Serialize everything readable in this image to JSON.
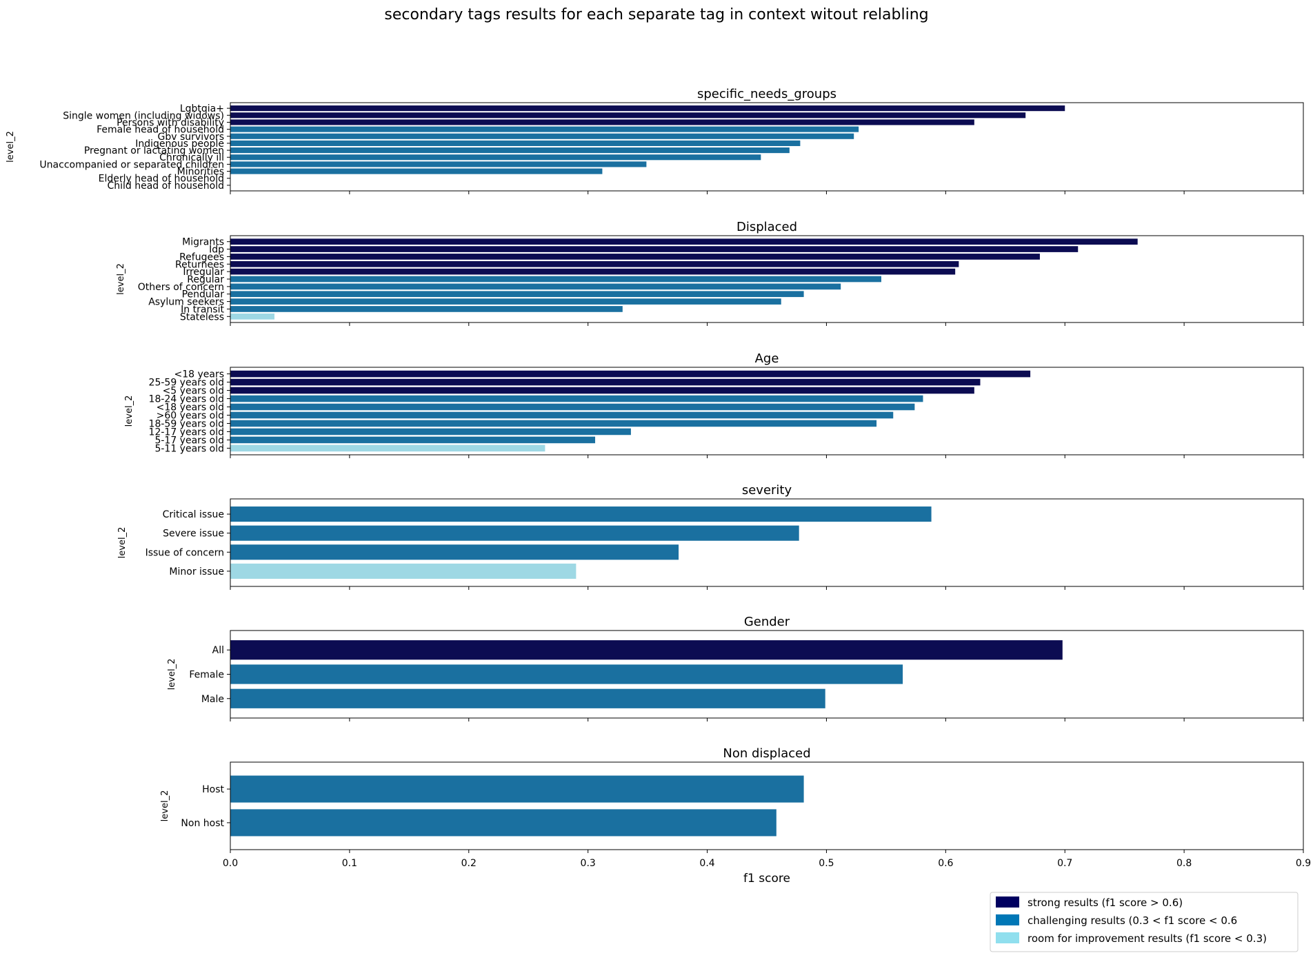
{
  "chart_data": {
    "type": "bar",
    "orientation": "horizontal",
    "title": "secondary tags results for each separate tag in context witout relabling",
    "xlabel": "f1 score",
    "xlim": [
      0,
      0.9
    ],
    "xticks": [
      "0.0",
      "0.1",
      "0.2",
      "0.3",
      "0.4",
      "0.5",
      "0.6",
      "0.7",
      "0.8",
      "0.9"
    ],
    "grid": false,
    "legend_position": "bottom-right",
    "colors": {
      "strong": "#0c0c52",
      "challenging": "#1a70a0",
      "room": "#9ed8e4",
      "legend_strong": "#000060",
      "legend_challenging": "#0077b6",
      "legend_room": "#90dfee"
    },
    "legend": [
      {
        "key": "strong",
        "label": "strong results (f1 score > 0.6)"
      },
      {
        "key": "challenging",
        "label": "challenging results (0.3 < f1 score < 0.6"
      },
      {
        "key": "room",
        "label": "room for improvement results (f1 score < 0.3)"
      }
    ],
    "panels": [
      {
        "title": "specific_needs_groups",
        "ylabel": "level_2",
        "categories": [
          "Lgbtqia+",
          "Single women (including widows)",
          "Persons with disability",
          "Female head of household",
          "Gbv survivors",
          "Indigenous people",
          "Pregnant or lactating women",
          "Chronically ill",
          "Unaccompanied or separated children",
          "Minorities",
          "Elderly head of household",
          "Child head of household"
        ],
        "values": [
          0.7,
          0.667,
          0.624,
          0.527,
          0.523,
          0.478,
          0.469,
          0.445,
          0.349,
          0.312,
          0.0,
          0.0
        ],
        "levels": [
          "strong",
          "strong",
          "strong",
          "challenging",
          "challenging",
          "challenging",
          "challenging",
          "challenging",
          "challenging",
          "challenging",
          "room",
          "room"
        ]
      },
      {
        "title": "Displaced",
        "ylabel": "level_2",
        "categories": [
          "Migrants",
          "Idp",
          "Refugees",
          "Returnees",
          "Irregular",
          "Regular",
          "Others of concern",
          "Pendular",
          "Asylum seekers",
          "In transit",
          "Stateless"
        ],
        "values": [
          0.761,
          0.711,
          0.679,
          0.611,
          0.608,
          0.546,
          0.512,
          0.481,
          0.462,
          0.329,
          0.037
        ],
        "levels": [
          "strong",
          "strong",
          "strong",
          "strong",
          "strong",
          "challenging",
          "challenging",
          "challenging",
          "challenging",
          "challenging",
          "room"
        ]
      },
      {
        "title": "Age",
        "ylabel": "level_2",
        "categories": [
          "<18 years",
          "25-59 years old",
          "<5 years old",
          "18-24 years old",
          "<18 years old",
          ">60 years old",
          "18-59 years old",
          "12-17 years old",
          "5-17 years old",
          "5-11 years old"
        ],
        "values": [
          0.671,
          0.629,
          0.624,
          0.581,
          0.574,
          0.556,
          0.542,
          0.336,
          0.306,
          0.264
        ],
        "levels": [
          "strong",
          "strong",
          "strong",
          "challenging",
          "challenging",
          "challenging",
          "challenging",
          "challenging",
          "challenging",
          "room"
        ]
      },
      {
        "title": "severity",
        "ylabel": "level_2",
        "categories": [
          "Critical issue",
          "Severe issue",
          "Issue of concern",
          "Minor issue"
        ],
        "values": [
          0.588,
          0.477,
          0.376,
          0.29
        ],
        "levels": [
          "challenging",
          "challenging",
          "challenging",
          "room"
        ]
      },
      {
        "title": "Gender",
        "ylabel": "level_2",
        "categories": [
          "All",
          "Female",
          "Male"
        ],
        "values": [
          0.698,
          0.564,
          0.499
        ],
        "levels": [
          "strong",
          "challenging",
          "challenging"
        ]
      },
      {
        "title": "Non displaced",
        "ylabel": "level_2",
        "categories": [
          "Host",
          "Non host"
        ],
        "values": [
          0.481,
          0.458
        ],
        "levels": [
          "challenging",
          "challenging"
        ]
      }
    ]
  }
}
